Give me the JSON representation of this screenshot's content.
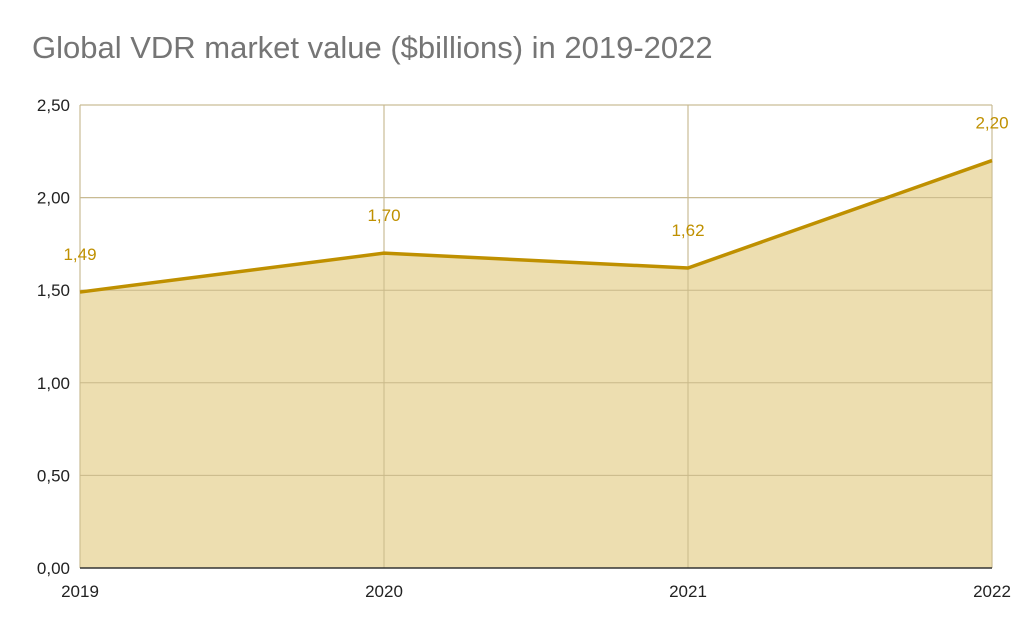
{
  "chart_data": {
    "type": "area",
    "title": "Global VDR market value ($billions) in 2019-2022",
    "xlabel": "",
    "ylabel": "",
    "categories": [
      "2019",
      "2020",
      "2021",
      "2022"
    ],
    "values": [
      1.49,
      1.7,
      1.62,
      2.2
    ],
    "data_labels": [
      "1,49",
      "1,70",
      "1,62",
      "2,20"
    ],
    "ylim": [
      0,
      2.5
    ],
    "y_ticks": [
      0,
      0.5,
      1.0,
      1.5,
      2.0,
      2.5
    ],
    "y_tick_labels": [
      "0,00",
      "0,50",
      "1,00",
      "1,50",
      "2,00",
      "2,50"
    ],
    "grid": true,
    "legend": "none",
    "colors": {
      "line": "#bf9000",
      "fill": "#ecdcac",
      "label": "#bf9000",
      "grid": "#cccccc",
      "axis": "#333333",
      "title": "#757575"
    }
  }
}
